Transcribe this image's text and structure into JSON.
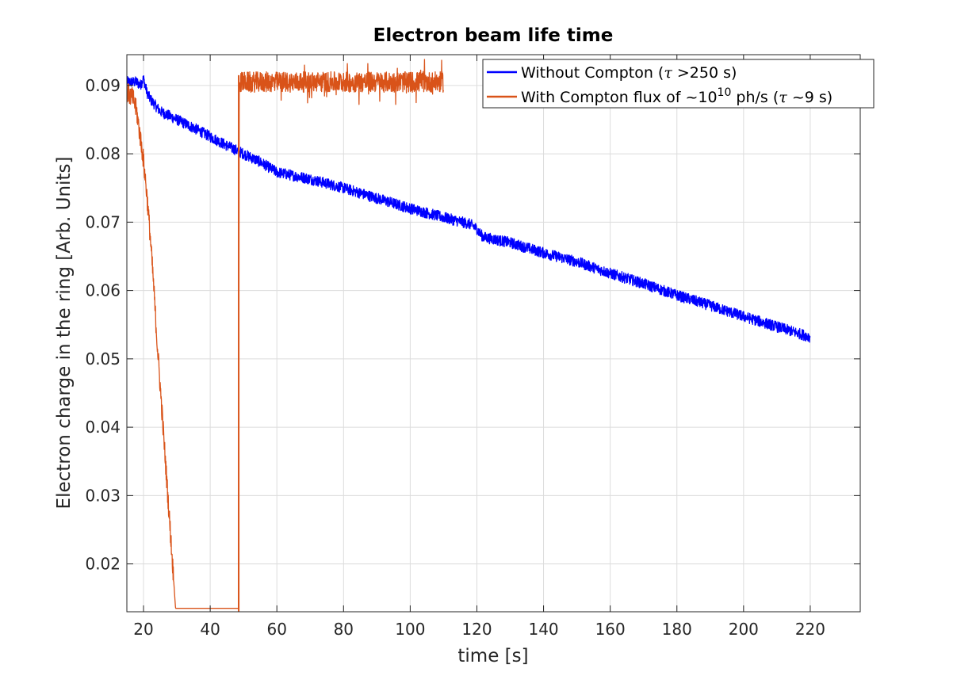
{
  "chart_data": {
    "type": "line",
    "title": "Electron beam life time",
    "xlabel": "time [s]",
    "ylabel": "Electron charge in the ring [Arb. Units]",
    "xlim": [
      15,
      235
    ],
    "ylim": [
      0.013,
      0.0945
    ],
    "x_ticks": [
      20,
      40,
      60,
      80,
      100,
      120,
      140,
      160,
      180,
      200,
      220
    ],
    "y_ticks": [
      0.02,
      0.03,
      0.04,
      0.05,
      0.06,
      0.07,
      0.08,
      0.09
    ],
    "x_tick_labels": [
      "20",
      "40",
      "60",
      "80",
      "100",
      "120",
      "140",
      "160",
      "180",
      "200",
      "220"
    ],
    "y_tick_labels": [
      "0.02",
      "0.03",
      "0.04",
      "0.05",
      "0.06",
      "0.07",
      "0.08",
      "0.09"
    ],
    "grid": true,
    "legend_position": "top-right",
    "series": [
      {
        "name": "Without Compton (τ >250 s)",
        "color": "#0000ff",
        "noise_band": 0.0008,
        "x": [
          15,
          18,
          19,
          20,
          21,
          22,
          25,
          30,
          35,
          40,
          45,
          48,
          50,
          55,
          60,
          70,
          80,
          90,
          100,
          110,
          118,
          119,
          120,
          121,
          122,
          130,
          140,
          150,
          160,
          170,
          180,
          190,
          200,
          210,
          220
        ],
        "y": [
          0.0905,
          0.0905,
          0.09,
          0.091,
          0.089,
          0.088,
          0.0862,
          0.085,
          0.0838,
          0.0825,
          0.0812,
          0.0805,
          0.08,
          0.0788,
          0.0773,
          0.0763,
          0.075,
          0.0735,
          0.072,
          0.0707,
          0.0697,
          0.0694,
          0.069,
          0.0683,
          0.0678,
          0.067,
          0.0655,
          0.0642,
          0.0625,
          0.061,
          0.0593,
          0.0578,
          0.0562,
          0.0547,
          0.0532
        ]
      },
      {
        "name": "With Compton flux of ~10^10 ph/s (τ ~9 s)",
        "color": "#d95319",
        "noise_band": 0.0015,
        "x": [
          15,
          17,
          18,
          19,
          20,
          21,
          22,
          23,
          24,
          25,
          26,
          27,
          28,
          29,
          29.6,
          30,
          48.5,
          48.6,
          48.7,
          49,
          50,
          60,
          70,
          80,
          90,
          100,
          110
        ],
        "y": [
          0.089,
          0.088,
          0.086,
          0.0825,
          0.079,
          0.074,
          0.068,
          0.061,
          0.053,
          0.046,
          0.039,
          0.032,
          0.025,
          0.018,
          0.0135,
          0.013,
          0.013,
          0.0525,
          0.09,
          0.0905,
          0.0905,
          0.0905,
          0.0905,
          0.0905,
          0.0905,
          0.0905,
          0.0905
        ]
      }
    ]
  },
  "legend": {
    "entries": [
      {
        "prefix": "Without Compton (",
        "symbol": "τ",
        "suffix": " >250 s)"
      },
      {
        "prefix": "With Compton flux of ~10",
        "sup": "10",
        "middle": " ph/s (",
        "symbol": "τ",
        "suffix": " ~9 s)"
      }
    ]
  }
}
